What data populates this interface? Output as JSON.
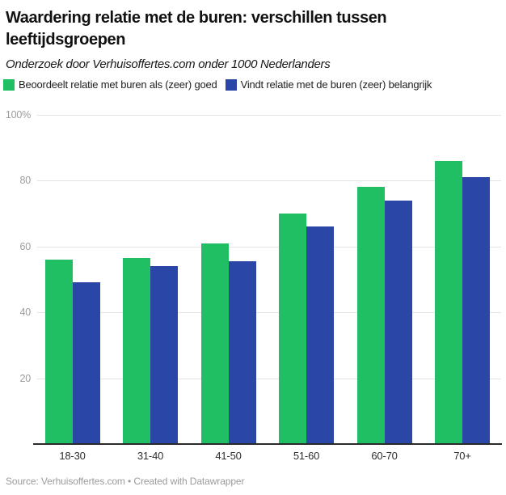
{
  "chart_data": {
    "type": "bar",
    "title": "Waardering relatie met de buren: verschillen tussen leeftijdsgroepen",
    "subtitle": "Onderzoek door Verhuisoffertes.com onder 1000 Nederlanders",
    "source_note": "Source: Verhuisoffertes.com • Created with Datawrapper",
    "categories": [
      "18-30",
      "31-40",
      "41-50",
      "51-60",
      "60-70",
      "70+"
    ],
    "series": [
      {
        "name": "Beoordeelt relatie met buren als (zeer) goed",
        "color": "#21bf63",
        "values": [
          56,
          56.5,
          61,
          70,
          78,
          86
        ]
      },
      {
        "name": "Vindt relatie met de buren (zeer) belangrijk",
        "color": "#2a47a8",
        "values": [
          49,
          54,
          55.5,
          66,
          74,
          81
        ]
      }
    ],
    "xlabel": "",
    "ylabel": "",
    "ylim": [
      0,
      100
    ],
    "yticks": [
      {
        "value": 100,
        "label": "100%"
      },
      {
        "value": 80,
        "label": "80"
      },
      {
        "value": 60,
        "label": "60"
      },
      {
        "value": 40,
        "label": "40"
      },
      {
        "value": 20,
        "label": "20"
      }
    ],
    "grid": true,
    "legend_position": "top"
  }
}
